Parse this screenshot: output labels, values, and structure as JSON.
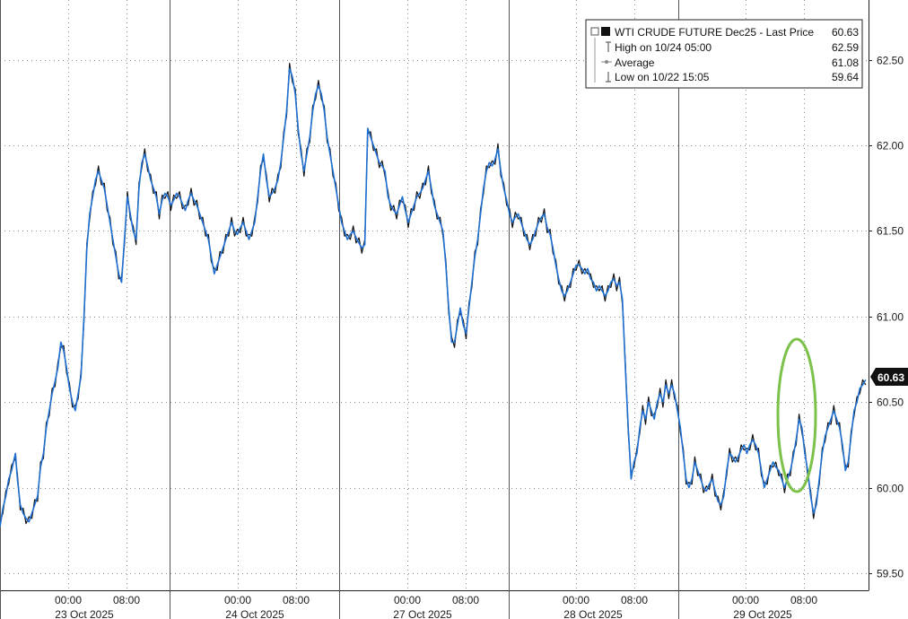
{
  "chart_data": {
    "type": "line",
    "legend": {
      "title": "WTI CRUDE FUTURE Dec25  - Last Price",
      "last_price": "60.63",
      "rows": [
        {
          "label": "High on 10/24 05:00",
          "value": "62.59"
        },
        {
          "label": "Average",
          "value": "61.08"
        },
        {
          "label": "Low on 10/22 15:05",
          "value": "59.64"
        }
      ]
    },
    "y_ticks": [
      "62.50",
      "62.00",
      "61.50",
      "61.00",
      "60.50",
      "60.00",
      "59.50"
    ],
    "ylim": [
      59.4,
      62.85
    ],
    "time_ticks": [
      "00:00",
      "08:00",
      "00:00",
      "08:00",
      "00:00",
      "08:00",
      "00:00",
      "08:00",
      "00:00",
      "08:00"
    ],
    "date_labels": [
      "23 Oct 2025",
      "24 Oct 2025",
      "27 Oct 2025",
      "28 Oct 2025",
      "29 Oct 2025"
    ],
    "last_price_tag": "60.63",
    "series": [
      {
        "color": "#1f6fd1",
        "points": [
          [
            0,
            59.77
          ],
          [
            3,
            59.88
          ],
          [
            6,
            59.95
          ],
          [
            9,
            60.05
          ],
          [
            12,
            60.1
          ],
          [
            16,
            60.2
          ],
          [
            18,
            60.05
          ],
          [
            21,
            59.9
          ],
          [
            24,
            59.85
          ],
          [
            27,
            59.82
          ],
          [
            30,
            59.8
          ],
          [
            33,
            59.85
          ],
          [
            36,
            59.9
          ],
          [
            39,
            59.95
          ],
          [
            42,
            60.12
          ],
          [
            45,
            60.2
          ],
          [
            48,
            60.35
          ],
          [
            51,
            60.45
          ],
          [
            54,
            60.55
          ],
          [
            57,
            60.62
          ],
          [
            60,
            60.7
          ],
          [
            63,
            60.85
          ],
          [
            66,
            60.8
          ],
          [
            69,
            60.7
          ],
          [
            72,
            60.58
          ],
          [
            75,
            60.5
          ],
          [
            78,
            60.45
          ],
          [
            81,
            60.55
          ],
          [
            84,
            60.65
          ],
          [
            87,
            61.0
          ],
          [
            90,
            61.4
          ],
          [
            93,
            61.6
          ],
          [
            96,
            61.7
          ],
          [
            99,
            61.8
          ],
          [
            102,
            61.85
          ],
          [
            105,
            61.8
          ],
          [
            108,
            61.75
          ],
          [
            111,
            61.65
          ],
          [
            114,
            61.55
          ],
          [
            117,
            61.45
          ],
          [
            120,
            61.35
          ],
          [
            123,
            61.25
          ],
          [
            126,
            61.2
          ],
          [
            129,
            61.45
          ],
          [
            132,
            61.7
          ],
          [
            135,
            61.6
          ],
          [
            138,
            61.5
          ],
          [
            141,
            61.45
          ],
          [
            144,
            61.75
          ],
          [
            147,
            61.9
          ],
          [
            150,
            61.95
          ],
          [
            153,
            61.88
          ],
          [
            156,
            61.8
          ],
          [
            159,
            61.75
          ],
          [
            162,
            61.7
          ],
          [
            165,
            61.6
          ],
          [
            168,
            61.68
          ],
          [
            171,
            61.72
          ],
          [
            174,
            61.7
          ],
          [
            177,
            61.65
          ],
          [
            180,
            61.68
          ],
          [
            183,
            61.72
          ],
          [
            186,
            61.7
          ],
          [
            189,
            61.66
          ],
          [
            192,
            61.62
          ],
          [
            195,
            61.68
          ],
          [
            198,
            61.72
          ],
          [
            201,
            61.68
          ],
          [
            204,
            61.65
          ],
          [
            207,
            61.6
          ],
          [
            210,
            61.55
          ],
          [
            213,
            61.5
          ],
          [
            216,
            61.45
          ],
          [
            219,
            61.35
          ],
          [
            222,
            61.25
          ],
          [
            225,
            61.3
          ],
          [
            228,
            61.35
          ],
          [
            231,
            61.4
          ],
          [
            234,
            61.45
          ],
          [
            237,
            61.5
          ],
          [
            240,
            61.55
          ],
          [
            243,
            61.5
          ],
          [
            246,
            61.48
          ],
          [
            249,
            61.52
          ],
          [
            252,
            61.55
          ],
          [
            255,
            61.5
          ],
          [
            258,
            61.45
          ],
          [
            261,
            61.5
          ],
          [
            264,
            61.55
          ],
          [
            267,
            61.7
          ],
          [
            270,
            61.85
          ],
          [
            273,
            61.95
          ],
          [
            276,
            61.8
          ],
          [
            279,
            61.7
          ],
          [
            282,
            61.72
          ],
          [
            285,
            61.75
          ],
          [
            288,
            61.8
          ],
          [
            291,
            61.9
          ],
          [
            294,
            62.05
          ],
          [
            297,
            62.2
          ],
          [
            300,
            62.45
          ],
          [
            303,
            62.4
          ],
          [
            306,
            62.3
          ],
          [
            309,
            62.1
          ],
          [
            312,
            61.95
          ],
          [
            315,
            61.85
          ],
          [
            318,
            61.95
          ],
          [
            321,
            62.05
          ],
          [
            324,
            62.2
          ],
          [
            327,
            62.3
          ],
          [
            330,
            62.35
          ],
          [
            333,
            62.3
          ],
          [
            336,
            62.2
          ],
          [
            339,
            62.05
          ],
          [
            342,
            61.95
          ],
          [
            345,
            61.85
          ],
          [
            348,
            61.75
          ],
          [
            351,
            61.65
          ],
          [
            354,
            61.55
          ],
          [
            357,
            61.5
          ],
          [
            360,
            61.45
          ],
          [
            363,
            61.48
          ],
          [
            366,
            61.5
          ],
          [
            369,
            61.46
          ],
          [
            372,
            61.43
          ],
          [
            375,
            61.4
          ],
          [
            378,
            61.42
          ],
          [
            381,
            62.1
          ],
          [
            384,
            62.05
          ],
          [
            387,
            62.0
          ],
          [
            390,
            61.95
          ],
          [
            393,
            61.9
          ],
          [
            396,
            61.88
          ],
          [
            399,
            61.85
          ],
          [
            402,
            61.7
          ],
          [
            405,
            61.65
          ],
          [
            408,
            61.62
          ],
          [
            411,
            61.6
          ],
          [
            414,
            61.65
          ],
          [
            417,
            61.7
          ],
          [
            420,
            61.62
          ],
          [
            423,
            61.55
          ],
          [
            426,
            61.6
          ],
          [
            429,
            61.65
          ],
          [
            432,
            61.7
          ],
          [
            435,
            61.72
          ],
          [
            438,
            61.75
          ],
          [
            441,
            61.8
          ],
          [
            444,
            61.85
          ],
          [
            447,
            61.75
          ],
          [
            450,
            61.65
          ],
          [
            453,
            61.6
          ],
          [
            456,
            61.55
          ],
          [
            459,
            61.5
          ],
          [
            462,
            61.3
          ],
          [
            465,
            61.05
          ],
          [
            468,
            60.85
          ],
          [
            471,
            60.85
          ],
          [
            474,
            60.95
          ],
          [
            477,
            61.05
          ],
          [
            480,
            60.95
          ],
          [
            483,
            60.9
          ],
          [
            486,
            61.05
          ],
          [
            489,
            61.2
          ],
          [
            492,
            61.35
          ],
          [
            495,
            61.45
          ],
          [
            498,
            61.6
          ],
          [
            501,
            61.75
          ],
          [
            504,
            61.85
          ],
          [
            507,
            61.9
          ],
          [
            510,
            61.88
          ],
          [
            513,
            61.92
          ],
          [
            516,
            61.98
          ],
          [
            519,
            61.85
          ],
          [
            522,
            61.75
          ],
          [
            525,
            61.68
          ],
          [
            528,
            61.6
          ],
          [
            531,
            61.55
          ],
          [
            534,
            61.58
          ],
          [
            537,
            61.6
          ],
          [
            540,
            61.55
          ],
          [
            543,
            61.5
          ],
          [
            546,
            61.45
          ],
          [
            549,
            61.42
          ],
          [
            552,
            61.45
          ],
          [
            555,
            61.5
          ],
          [
            558,
            61.55
          ],
          [
            561,
            61.58
          ],
          [
            564,
            61.6
          ],
          [
            567,
            61.52
          ],
          [
            570,
            61.48
          ],
          [
            573,
            61.4
          ],
          [
            576,
            61.3
          ],
          [
            579,
            61.22
          ],
          [
            582,
            61.15
          ],
          [
            585,
            61.12
          ],
          [
            588,
            61.15
          ],
          [
            591,
            61.2
          ],
          [
            594,
            61.25
          ],
          [
            597,
            61.3
          ],
          [
            600,
            61.3
          ],
          [
            603,
            61.28
          ],
          [
            606,
            61.25
          ],
          [
            609,
            61.28
          ],
          [
            612,
            61.22
          ],
          [
            615,
            61.2
          ],
          [
            618,
            61.15
          ],
          [
            621,
            61.18
          ],
          [
            624,
            61.15
          ],
          [
            627,
            61.12
          ],
          [
            630,
            61.15
          ],
          [
            633,
            61.2
          ],
          [
            636,
            61.22
          ],
          [
            639,
            61.18
          ],
          [
            642,
            61.2
          ],
          [
            645,
            61.1
          ],
          [
            648,
            60.7
          ],
          [
            651,
            60.35
          ],
          [
            654,
            60.05
          ],
          [
            657,
            60.15
          ],
          [
            660,
            60.2
          ],
          [
            663,
            60.35
          ],
          [
            666,
            60.45
          ],
          [
            669,
            60.4
          ],
          [
            672,
            60.5
          ],
          [
            675,
            60.45
          ],
          [
            678,
            60.4
          ],
          [
            681,
            60.5
          ],
          [
            684,
            60.55
          ],
          [
            687,
            60.5
          ],
          [
            690,
            60.6
          ],
          [
            693,
            60.55
          ],
          [
            696,
            60.6
          ],
          [
            699,
            60.55
          ],
          [
            702,
            60.45
          ],
          [
            705,
            60.35
          ],
          [
            708,
            60.2
          ],
          [
            711,
            60.05
          ],
          [
            714,
            60.0
          ],
          [
            717,
            60.05
          ],
          [
            720,
            60.15
          ],
          [
            723,
            60.1
          ],
          [
            726,
            60.05
          ],
          [
            729,
            60.0
          ],
          [
            732,
            59.98
          ],
          [
            735,
            60.02
          ],
          [
            738,
            60.05
          ],
          [
            741,
            59.98
          ],
          [
            744,
            59.92
          ],
          [
            747,
            59.9
          ],
          [
            750,
            59.95
          ],
          [
            753,
            60.1
          ],
          [
            756,
            60.2
          ],
          [
            759,
            60.18
          ],
          [
            762,
            60.15
          ],
          [
            765,
            60.18
          ],
          [
            768,
            60.22
          ],
          [
            771,
            60.25
          ],
          [
            774,
            60.2
          ],
          [
            777,
            60.25
          ],
          [
            780,
            60.28
          ],
          [
            783,
            60.25
          ],
          [
            786,
            60.2
          ],
          [
            789,
            60.1
          ],
          [
            792,
            60.0
          ],
          [
            795,
            60.05
          ],
          [
            798,
            60.1
          ],
          [
            801,
            60.15
          ],
          [
            804,
            60.12
          ],
          [
            807,
            60.1
          ],
          [
            810,
            60.05
          ],
          [
            813,
            60.0
          ],
          [
            816,
            60.05
          ],
          [
            819,
            60.1
          ],
          [
            822,
            60.18
          ],
          [
            825,
            60.28
          ],
          [
            828,
            60.4
          ],
          [
            831,
            60.35
          ],
          [
            834,
            60.2
          ],
          [
            837,
            60.1
          ],
          [
            840,
            59.95
          ],
          [
            843,
            59.85
          ],
          [
            846,
            59.9
          ],
          [
            849,
            60.05
          ],
          [
            852,
            60.2
          ],
          [
            855,
            60.3
          ],
          [
            858,
            60.35
          ],
          [
            861,
            60.4
          ],
          [
            864,
            60.45
          ],
          [
            867,
            60.4
          ],
          [
            870,
            60.35
          ],
          [
            873,
            60.25
          ],
          [
            876,
            60.1
          ],
          [
            879,
            60.15
          ],
          [
            882,
            60.3
          ],
          [
            885,
            60.45
          ],
          [
            888,
            60.5
          ],
          [
            891,
            60.58
          ],
          [
            894,
            60.6
          ],
          [
            897,
            60.63
          ]
        ]
      }
    ]
  }
}
